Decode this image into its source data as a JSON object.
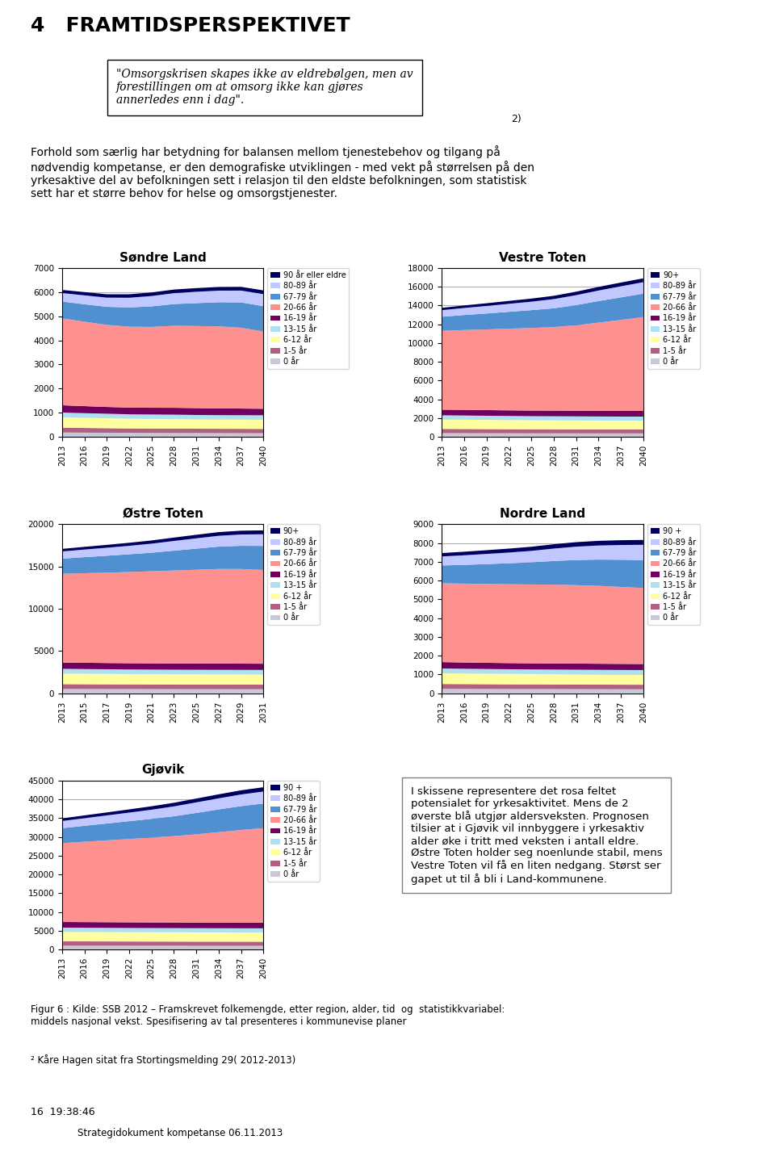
{
  "title": "4   FRAMTIDSPERSPEKTIVET",
  "annotations": [
    "\"Omsorgskrisen skapes ikke av eldrebølgen, men av\nforestillingen om at omsorg ikke kan gjøres\nannerledes enn i dag\".",
    "2)",
    "Forhold som særlig har betydning for balansen mellom tjenestebehov og tilgang på\nnødvendig kompetanse, er den demografiske utviklingen - med vekt på størrelsen på den\nyrkesaktive del av befolkningen sett i relasjon til den eldste befolkningen, som statistisk\nsett har et større behov for helse og omsorgstjenester.",
    "I skissene representere det rosa feltet\npotensialet for yrkesaktivitet. Mens de 2\nøverste blå utgjør aldersveksten. Prognosen\ntilsier at i Gjøvik vil innbyggere i yrkesaktiv\nalder øke i tritt med veksten i antall eldre.\nØstre Toten holder seg noenlunde stabil, mens\nVestre Toten vil få en liten nedgang. Størst ser\ngapet ut til å bli i Land-kommunene.",
    "Figur 6 : Kilde: SSB 2012 – Framskrevet folkemengde, etter region, alder, tid  og  statistikkvariabel:\nmiddels nasjonal vekst. Spesifisering av tal presenteres i kommunevise planer",
    "² Kåre Hagen sitat fra Stortingsmelding 29( 2012-2013)",
    "16  19:38:46",
    "Strategidokument kompetanse 06.11.2013"
  ],
  "chart_data": [
    {
      "type": "area",
      "stacked": true,
      "title": "Søndre Land",
      "grid": "y",
      "legend": "upper left",
      "x": [
        2013,
        2016,
        2019,
        2022,
        2025,
        2028,
        2031,
        2034,
        2037,
        2040
      ],
      "xlim": [
        2013,
        2040
      ],
      "xticks": [
        2013,
        2016,
        2019,
        2022,
        2025,
        2028,
        2031,
        2034,
        2037,
        2040
      ],
      "ylim": [
        0,
        7000
      ],
      "yticks": [
        0,
        1000,
        2000,
        3000,
        4000,
        5000,
        6000,
        7000
      ],
      "series": [
        {
          "name": "0 år",
          "color": "#C8C8D8",
          "values": [
            180,
            175,
            170,
            165,
            162,
            160,
            158,
            155,
            153,
            150
          ]
        },
        {
          "name": "1-5 år",
          "color": "#B06080",
          "values": [
            200,
            195,
            190,
            185,
            185,
            185,
            180,
            180,
            180,
            180
          ]
        },
        {
          "name": "6-12 år",
          "color": "#FFFFA0",
          "values": [
            430,
            420,
            410,
            400,
            395,
            390,
            385,
            380,
            380,
            380
          ]
        },
        {
          "name": "13-15 år",
          "color": "#B0E0F0",
          "values": [
            200,
            195,
            190,
            185,
            185,
            185,
            185,
            185,
            185,
            185
          ]
        },
        {
          "name": "16-19 år",
          "color": "#700060",
          "values": [
            300,
            290,
            280,
            280,
            280,
            285,
            285,
            280,
            275,
            270
          ]
        },
        {
          "name": "20-66 år",
          "color": "#FF9090",
          "values": [
            3600,
            3500,
            3400,
            3350,
            3350,
            3400,
            3400,
            3400,
            3350,
            3200
          ]
        },
        {
          "name": "67-79 år",
          "color": "#5090D0",
          "values": [
            700,
            720,
            750,
            800,
            850,
            900,
            950,
            1000,
            1050,
            1050
          ]
        },
        {
          "name": "80-89 år",
          "color": "#C0C8FF",
          "values": [
            350,
            370,
            380,
            400,
            430,
            450,
            470,
            480,
            490,
            500
          ]
        },
        {
          "name": "90 år eller eldre",
          "color": "#000060",
          "values": [
            130,
            135,
            140,
            145,
            148,
            150,
            152,
            153,
            154,
            155
          ]
        }
      ]
    },
    {
      "type": "area",
      "stacked": true,
      "title": "Vestre Toten",
      "grid": "y",
      "legend": "upper left",
      "x": [
        2013,
        2016,
        2019,
        2022,
        2025,
        2028,
        2031,
        2034,
        2037,
        2040
      ],
      "xlim": [
        2013,
        2040
      ],
      "xticks": [
        2013,
        2016,
        2019,
        2022,
        2025,
        2028,
        2031,
        2034,
        2037,
        2040
      ],
      "ylim": [
        0,
        18000
      ],
      "yticks": [
        0,
        2000,
        4000,
        6000,
        8000,
        10000,
        12000,
        14000,
        16000,
        18000
      ],
      "series": [
        {
          "name": "0 år",
          "color": "#C8C8D8",
          "values": [
            400,
            395,
            390,
            385,
            380,
            378,
            375,
            372,
            370,
            368
          ]
        },
        {
          "name": "1-5 år",
          "color": "#B06080",
          "values": [
            450,
            445,
            440,
            435,
            430,
            428,
            425,
            422,
            420,
            420
          ]
        },
        {
          "name": "6-12 år",
          "color": "#FFFFA0",
          "values": [
            1000,
            990,
            980,
            970,
            960,
            955,
            950,
            945,
            940,
            940
          ]
        },
        {
          "name": "13-15 år",
          "color": "#B0E0F0",
          "values": [
            450,
            445,
            440,
            438,
            435,
            435,
            435,
            435,
            435,
            435
          ]
        },
        {
          "name": "16-19 år",
          "color": "#700060",
          "values": [
            600,
            610,
            600,
            600,
            600,
            605,
            605,
            600,
            600,
            600
          ]
        },
        {
          "name": "20-66 år",
          "color": "#FF9090",
          "values": [
            8400,
            8500,
            8600,
            8700,
            8800,
            8900,
            9100,
            9400,
            9700,
            10000
          ]
        },
        {
          "name": "67-79 år",
          "color": "#5090D0",
          "values": [
            1500,
            1600,
            1700,
            1800,
            1900,
            2000,
            2150,
            2300,
            2400,
            2500
          ]
        },
        {
          "name": "80-89 år",
          "color": "#C0C8FF",
          "values": [
            700,
            750,
            800,
            850,
            900,
            980,
            1060,
            1120,
            1180,
            1220
          ]
        },
        {
          "name": "90+",
          "color": "#000060",
          "values": [
            250,
            270,
            290,
            310,
            330,
            350,
            370,
            385,
            400,
            410
          ]
        }
      ]
    },
    {
      "type": "area",
      "stacked": true,
      "title": "Østre Toten",
      "grid": "y",
      "legend": "upper left",
      "x": [
        2013,
        2015,
        2017,
        2019,
        2021,
        2023,
        2025,
        2027,
        2029,
        2031
      ],
      "xlim": [
        2013,
        2031
      ],
      "xticks": [
        2013,
        2015,
        2017,
        2019,
        2021,
        2023,
        2025,
        2027,
        2029,
        2031
      ],
      "ylim": [
        0,
        20000
      ],
      "yticks": [
        0,
        5000,
        10000,
        15000,
        20000
      ],
      "series": [
        {
          "name": "0 år",
          "color": "#C8C8D8",
          "values": [
            500,
            495,
            490,
            485,
            480,
            477,
            474,
            471,
            469,
            467
          ]
        },
        {
          "name": "1-5 år",
          "color": "#B06080",
          "values": [
            570,
            565,
            560,
            555,
            552,
            549,
            547,
            545,
            543,
            542
          ]
        },
        {
          "name": "6-12 år",
          "color": "#FFFFA0",
          "values": [
            1250,
            1240,
            1230,
            1220,
            1215,
            1210,
            1207,
            1205,
            1203,
            1200
          ]
        },
        {
          "name": "13-15 år",
          "color": "#B0E0F0",
          "values": [
            560,
            555,
            550,
            548,
            545,
            545,
            544,
            544,
            544,
            543
          ]
        },
        {
          "name": "16-19 år",
          "color": "#700060",
          "values": [
            750,
            750,
            740,
            740,
            740,
            742,
            742,
            740,
            738,
            735
          ]
        },
        {
          "name": "20-66 år",
          "color": "#FF9090",
          "values": [
            10500,
            10600,
            10700,
            10800,
            10900,
            11000,
            11100,
            11200,
            11200,
            11100
          ]
        },
        {
          "name": "67-79 år",
          "color": "#5090D0",
          "values": [
            1800,
            1900,
            2000,
            2100,
            2200,
            2350,
            2500,
            2650,
            2750,
            2850
          ]
        },
        {
          "name": "80-89 år",
          "color": "#C0C8FF",
          "values": [
            850,
            900,
            950,
            1000,
            1070,
            1150,
            1220,
            1280,
            1340,
            1380
          ]
        },
        {
          "name": "90+",
          "color": "#000060",
          "values": [
            300,
            320,
            340,
            360,
            380,
            400,
            420,
            435,
            450,
            460
          ]
        }
      ]
    },
    {
      "type": "area",
      "stacked": true,
      "title": "Nordre Land",
      "grid": "y",
      "legend": "upper left",
      "x": [
        2013,
        2016,
        2019,
        2022,
        2025,
        2028,
        2031,
        2034,
        2037,
        2040
      ],
      "xlim": [
        2013,
        2040
      ],
      "xticks": [
        2013,
        2016,
        2019,
        2022,
        2025,
        2028,
        2031,
        2034,
        2037,
        2040
      ],
      "ylim": [
        0,
        9000
      ],
      "yticks": [
        0,
        1000,
        2000,
        3000,
        4000,
        5000,
        6000,
        7000,
        8000,
        9000
      ],
      "series": [
        {
          "name": "0 år",
          "color": "#C8C8D8",
          "values": [
            230,
            227,
            224,
            221,
            219,
            217,
            215,
            213,
            211,
            210
          ]
        },
        {
          "name": "1-5 år",
          "color": "#B06080",
          "values": [
            260,
            257,
            254,
            251,
            249,
            247,
            245,
            243,
            241,
            240
          ]
        },
        {
          "name": "6-12 år",
          "color": "#FFFFA0",
          "values": [
            570,
            565,
            560,
            555,
            552,
            549,
            547,
            545,
            543,
            542
          ]
        },
        {
          "name": "13-15 år",
          "color": "#B0E0F0",
          "values": [
            255,
            252,
            250,
            248,
            246,
            245,
            244,
            243,
            242,
            241
          ]
        },
        {
          "name": "16-19 år",
          "color": "#700060",
          "values": [
            340,
            335,
            330,
            328,
            326,
            326,
            325,
            324,
            323,
            322
          ]
        },
        {
          "name": "20-66 år",
          "color": "#FF9090",
          "values": [
            4200,
            4200,
            4200,
            4200,
            4200,
            4200,
            4180,
            4150,
            4100,
            4050
          ]
        },
        {
          "name": "67-79 år",
          "color": "#5090D0",
          "values": [
            950,
            1000,
            1060,
            1120,
            1180,
            1260,
            1340,
            1400,
            1450,
            1490
          ]
        },
        {
          "name": "80-89 år",
          "color": "#C0C8FF",
          "values": [
            480,
            510,
            540,
            570,
            610,
            660,
            710,
            750,
            785,
            810
          ]
        },
        {
          "name": "90 +",
          "color": "#000060",
          "values": [
            180,
            190,
            200,
            210,
            220,
            230,
            240,
            248,
            255,
            260
          ]
        }
      ]
    },
    {
      "type": "area",
      "stacked": true,
      "title": "Gjøvik",
      "grid": "y",
      "legend": "upper left",
      "x": [
        2013,
        2016,
        2019,
        2022,
        2025,
        2028,
        2031,
        2034,
        2037,
        2040
      ],
      "xlim": [
        2013,
        2040
      ],
      "xticks": [
        2013,
        2016,
        2019,
        2022,
        2025,
        2028,
        2031,
        2034,
        2037,
        2040
      ],
      "ylim": [
        0,
        45000
      ],
      "yticks": [
        0,
        5000,
        10000,
        15000,
        20000,
        25000,
        30000,
        35000,
        40000,
        45000
      ],
      "series": [
        {
          "name": "0 år",
          "color": "#C8C8D8",
          "values": [
            1020,
            1012,
            1005,
            998,
            992,
            987,
            982,
            978,
            974,
            972
          ]
        },
        {
          "name": "1-5 år",
          "color": "#B06080",
          "values": [
            1150,
            1142,
            1135,
            1128,
            1122,
            1117,
            1112,
            1108,
            1104,
            1102
          ]
        },
        {
          "name": "6-12 år",
          "color": "#FFFFA0",
          "values": [
            2520,
            2510,
            2500,
            2490,
            2482,
            2476,
            2471,
            2466,
            2462,
            2460
          ]
        },
        {
          "name": "13-15 år",
          "color": "#B0E0F0",
          "values": [
            1130,
            1125,
            1120,
            1116,
            1112,
            1110,
            1108,
            1106,
            1104,
            1103
          ]
        },
        {
          "name": "16-19 år",
          "color": "#700060",
          "values": [
            1500,
            1505,
            1500,
            1500,
            1500,
            1505,
            1505,
            1500,
            1498,
            1496
          ]
        },
        {
          "name": "20-66 år",
          "color": "#FF9090",
          "values": [
            21000,
            21400,
            21800,
            22200,
            22600,
            23000,
            23500,
            24100,
            24700,
            25200
          ]
        },
        {
          "name": "67-79 år",
          "color": "#5090D0",
          "values": [
            4000,
            4250,
            4500,
            4750,
            5000,
            5300,
            5700,
            6050,
            6350,
            6550
          ]
        },
        {
          "name": "80-89 år",
          "color": "#C0C8FF",
          "values": [
            1900,
            2020,
            2150,
            2280,
            2430,
            2620,
            2810,
            2960,
            3100,
            3200
          ]
        },
        {
          "name": "90 +",
          "color": "#000060",
          "values": [
            700,
            750,
            800,
            855,
            910,
            965,
            1020,
            1065,
            1110,
            1145
          ]
        }
      ]
    }
  ]
}
